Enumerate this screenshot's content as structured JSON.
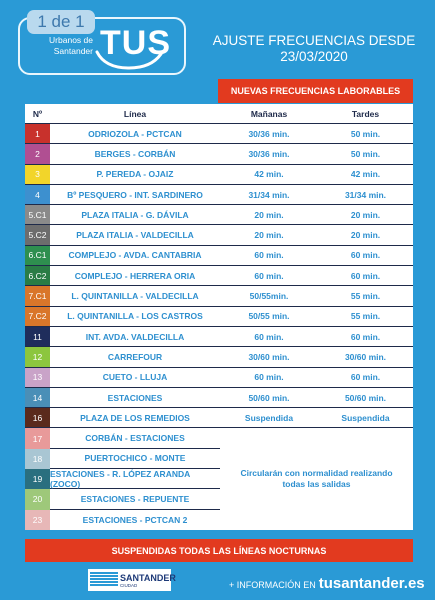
{
  "page_badge": "1 de 1",
  "logo": {
    "subtitle_1": "Urbanos de",
    "subtitle_2": "Santander",
    "brand": "TUS"
  },
  "header": {
    "title_line1": "AJUSTE FRECUENCIAS DESDE",
    "title_line2": "23/03/2020"
  },
  "nuevas_banner": "NUEVAS FRECUENCIAS LABORABLES",
  "columns": {
    "num": "Nº",
    "line": "Línea",
    "morning": "Mañanas",
    "afternoon": "Tardes"
  },
  "rows": [
    {
      "num": "1",
      "color": "#c8312c",
      "line": "ODRIOZOLA - PCTCAN",
      "morning": "30/36 min.",
      "afternoon": "50 min."
    },
    {
      "num": "2",
      "color": "#b04f92",
      "line": "BERGES - CORBÁN",
      "morning": "30/36 min.",
      "afternoon": "50 min."
    },
    {
      "num": "3",
      "color": "#f2d52a",
      "line": "P. PEREDA - OJAIZ",
      "morning": "42 min.",
      "afternoon": "42 min."
    },
    {
      "num": "4",
      "color": "#3d90cf",
      "line": "Bº PESQUERO - INT. SARDINERO",
      "morning": "31/34 min.",
      "afternoon": "31/34 min."
    },
    {
      "num": "5.C1",
      "color": "#8a8a8a",
      "line": "PLAZA ITALIA - G. DÁVILA",
      "morning": "20 min.",
      "afternoon": "20 min."
    },
    {
      "num": "5.C2",
      "color": "#6d6d6d",
      "line": "PLAZA ITALIA - VALDECILLA",
      "morning": "20 min.",
      "afternoon": "20 min."
    },
    {
      "num": "6.C1",
      "color": "#2e8f4f",
      "line": "COMPLEJO - AVDA. CANTABRIA",
      "morning": "60 min.",
      "afternoon": "60 min."
    },
    {
      "num": "6.C2",
      "color": "#2a7c45",
      "line": "COMPLEJO - HERRERA ORIA",
      "morning": "60 min.",
      "afternoon": "60 min."
    },
    {
      "num": "7.C1",
      "color": "#d9762a",
      "line": "L. QUINTANILLA - VALDECILLA",
      "morning": "50/55min.",
      "afternoon": "55 min."
    },
    {
      "num": "7.C2",
      "color": "#d9762a",
      "line": "L. QUINTANILLA - LOS CASTROS",
      "morning": "50/55 min.",
      "afternoon": "55 min."
    },
    {
      "num": "11",
      "color": "#1f2d5c",
      "line": "INT. AVDA. VALDECILLA",
      "morning": "60 min.",
      "afternoon": "60 min."
    },
    {
      "num": "12",
      "color": "#8cc63e",
      "line": "CARREFOUR",
      "morning": "30/60 min.",
      "afternoon": "30/60 min."
    },
    {
      "num": "13",
      "color": "#c9a3c8",
      "line": "CUETO - LLUJA",
      "morning": "60 min.",
      "afternoon": "60 min."
    },
    {
      "num": "14",
      "color": "#4a8fb7",
      "line": "ESTACIONES",
      "morning": "50/60 min.",
      "afternoon": "50/60 min."
    },
    {
      "num": "16",
      "color": "#5a2a1c",
      "line": "PLAZA DE LOS REMEDIOS",
      "morning": "Suspendida",
      "afternoon": "Suspendida"
    }
  ],
  "suspended_rows": [
    {
      "num": "17",
      "color": "#e89a9a",
      "line": "CORBÁN - ESTACIONES"
    },
    {
      "num": "18",
      "color": "#a9c6d3",
      "line": "PUERTOCHICO - MONTE"
    },
    {
      "num": "19",
      "color": "#2a6f7f",
      "line": "ESTACIONES - R. LÓPEZ ARANDA (ZOCO)"
    },
    {
      "num": "20",
      "color": "#9ec87a",
      "line": "ESTACIONES - REPUENTE"
    },
    {
      "num": "23",
      "color": "#e7b7b7",
      "line": "ESTACIONES - PCTCAN 2"
    }
  ],
  "suspended_note": "Circularán con normalidad realizando todas las salidas",
  "nocturnas_banner": "SUSPENDIDAS TODAS LAS LÍNEAS NOCTURNAS",
  "footer": {
    "santander_name": "SANTANDER",
    "santander_sub": "CIUDAD",
    "info_prefix": "+ INFORMACIÓN EN",
    "info_url": "tusantander.es"
  }
}
